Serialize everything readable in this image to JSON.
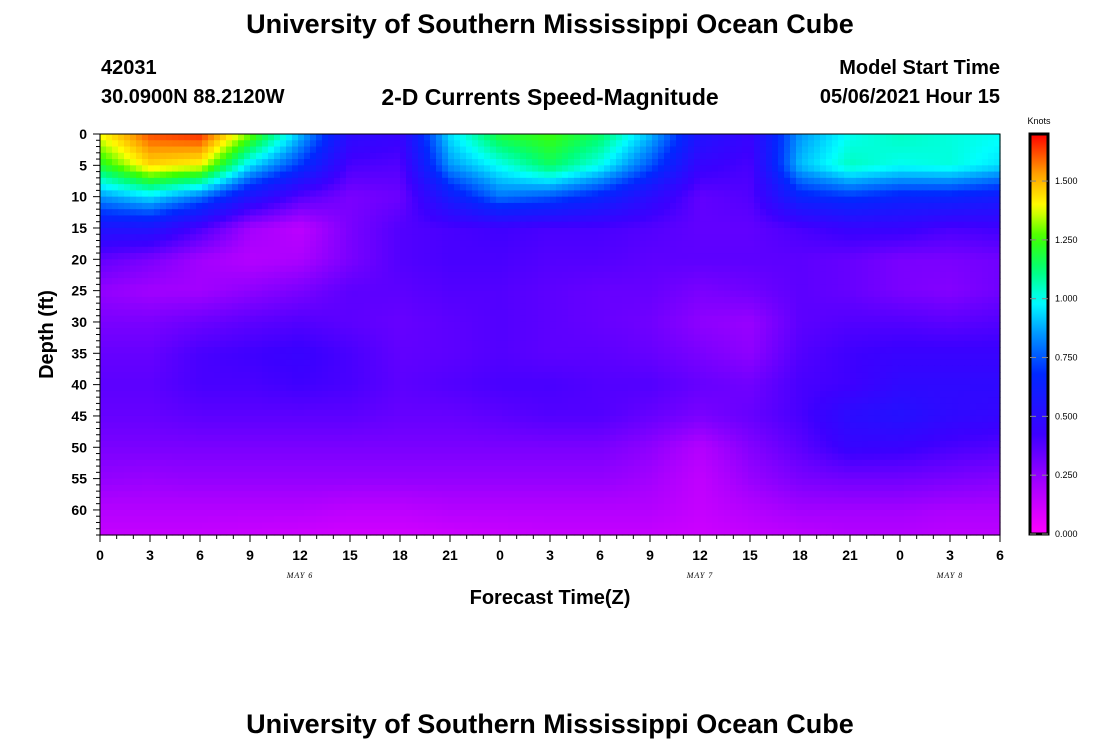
{
  "header": {
    "title": "University of Southern Mississippi Ocean Cube",
    "station_id": "42031",
    "coordinates": "30.0900N  88.2120W",
    "subtitle": "2-D Currents Speed-Magnitude",
    "model_start_label": "Model Start Time",
    "model_start_value": "05/06/2021 Hour 15"
  },
  "footer": {
    "title": "University of Southern Mississippi Ocean Cube"
  },
  "chart_data": {
    "type": "heatmap",
    "title": "2-D Currents Speed-Magnitude",
    "xlabel": "Forecast Time(Z)",
    "ylabel": "Depth (ft)",
    "x_hours": [
      0,
      3,
      6,
      9,
      12,
      15,
      18,
      21,
      24,
      27,
      30,
      33,
      36,
      39,
      42,
      45,
      48,
      51,
      54
    ],
    "x_tick_labels": [
      "0",
      "3",
      "6",
      "9",
      "12",
      "15",
      "18",
      "21",
      "0",
      "3",
      "6",
      "9",
      "12",
      "15",
      "18",
      "21",
      "0",
      "3",
      "6"
    ],
    "day_labels": [
      {
        "text": "MAY 6",
        "hour": 12
      },
      {
        "text": "MAY 7",
        "hour": 36
      },
      {
        "text": "MAY 8",
        "hour": 51
      }
    ],
    "y_depths_ft": [
      0,
      5,
      10,
      15,
      20,
      25,
      30,
      35,
      40,
      45,
      50,
      55,
      60
    ],
    "y_tick_labels": [
      "0",
      "5",
      "10",
      "15",
      "20",
      "25",
      "30",
      "35",
      "40",
      "45",
      "50",
      "55",
      "60"
    ],
    "xlim": [
      0,
      54
    ],
    "ylim": [
      64,
      0
    ],
    "colorbar": {
      "unit": "Knots",
      "range": [
        0,
        1.7
      ],
      "tick_values": [
        0,
        0.25,
        0.5,
        0.75,
        1.0,
        1.25,
        1.5
      ],
      "tick_labels": [
        "0.000",
        "0.250",
        "0.500",
        "0.750",
        "1.000",
        "1.250",
        "1.500"
      ]
    },
    "z_speed_knots": [
      [
        1.4,
        1.62,
        1.66,
        1.3,
        0.9,
        0.5,
        0.45,
        0.95,
        1.2,
        1.25,
        1.15,
        0.9,
        0.55,
        0.45,
        0.85,
        1.0,
        1.05,
        1.02,
        1.0
      ],
      [
        1.2,
        1.45,
        1.4,
        0.95,
        0.7,
        0.4,
        0.38,
        0.85,
        1.0,
        1.15,
        1.0,
        0.75,
        0.45,
        0.4,
        0.9,
        1.05,
        1.0,
        1.02,
        0.95
      ],
      [
        0.85,
        0.95,
        0.8,
        0.55,
        0.38,
        0.3,
        0.33,
        0.6,
        0.8,
        0.75,
        0.65,
        0.5,
        0.35,
        0.38,
        0.65,
        0.7,
        0.65,
        0.65,
        0.6
      ],
      [
        0.55,
        0.55,
        0.4,
        0.22,
        0.16,
        0.3,
        0.38,
        0.4,
        0.42,
        0.4,
        0.4,
        0.38,
        0.35,
        0.35,
        0.4,
        0.45,
        0.45,
        0.4,
        0.42
      ],
      [
        0.35,
        0.3,
        0.22,
        0.18,
        0.2,
        0.3,
        0.38,
        0.4,
        0.4,
        0.38,
        0.38,
        0.36,
        0.36,
        0.36,
        0.36,
        0.34,
        0.3,
        0.3,
        0.32
      ],
      [
        0.25,
        0.22,
        0.22,
        0.26,
        0.3,
        0.36,
        0.36,
        0.38,
        0.38,
        0.36,
        0.34,
        0.34,
        0.3,
        0.32,
        0.36,
        0.34,
        0.3,
        0.28,
        0.32
      ],
      [
        0.3,
        0.3,
        0.33,
        0.36,
        0.38,
        0.36,
        0.34,
        0.36,
        0.38,
        0.36,
        0.34,
        0.32,
        0.26,
        0.24,
        0.36,
        0.38,
        0.38,
        0.36,
        0.38
      ],
      [
        0.34,
        0.34,
        0.4,
        0.42,
        0.44,
        0.4,
        0.35,
        0.36,
        0.38,
        0.36,
        0.36,
        0.34,
        0.3,
        0.26,
        0.38,
        0.42,
        0.44,
        0.44,
        0.44
      ],
      [
        0.36,
        0.36,
        0.4,
        0.4,
        0.42,
        0.4,
        0.36,
        0.38,
        0.4,
        0.4,
        0.38,
        0.38,
        0.34,
        0.32,
        0.4,
        0.42,
        0.48,
        0.48,
        0.48
      ],
      [
        0.34,
        0.34,
        0.36,
        0.36,
        0.36,
        0.36,
        0.34,
        0.34,
        0.36,
        0.38,
        0.38,
        0.34,
        0.3,
        0.34,
        0.4,
        0.5,
        0.53,
        0.48,
        0.46
      ],
      [
        0.3,
        0.3,
        0.3,
        0.3,
        0.3,
        0.3,
        0.3,
        0.3,
        0.3,
        0.3,
        0.3,
        0.26,
        0.18,
        0.28,
        0.36,
        0.45,
        0.44,
        0.4,
        0.38
      ],
      [
        0.25,
        0.24,
        0.25,
        0.25,
        0.25,
        0.25,
        0.25,
        0.25,
        0.25,
        0.25,
        0.25,
        0.22,
        0.15,
        0.24,
        0.3,
        0.32,
        0.32,
        0.3,
        0.28
      ],
      [
        0.18,
        0.18,
        0.18,
        0.18,
        0.18,
        0.16,
        0.16,
        0.18,
        0.18,
        0.18,
        0.18,
        0.18,
        0.14,
        0.18,
        0.22,
        0.22,
        0.22,
        0.2,
        0.2
      ],
      [
        0.14,
        0.14,
        0.14,
        0.13,
        0.12,
        0.11,
        0.11,
        0.12,
        0.13,
        0.14,
        0.14,
        0.14,
        0.12,
        0.14,
        0.16,
        0.18,
        0.18,
        0.16,
        0.16
      ]
    ],
    "z_row_depths_ft": [
      0,
      5,
      10,
      15,
      20,
      25,
      30,
      35,
      40,
      45,
      50,
      55,
      60,
      64
    ]
  }
}
